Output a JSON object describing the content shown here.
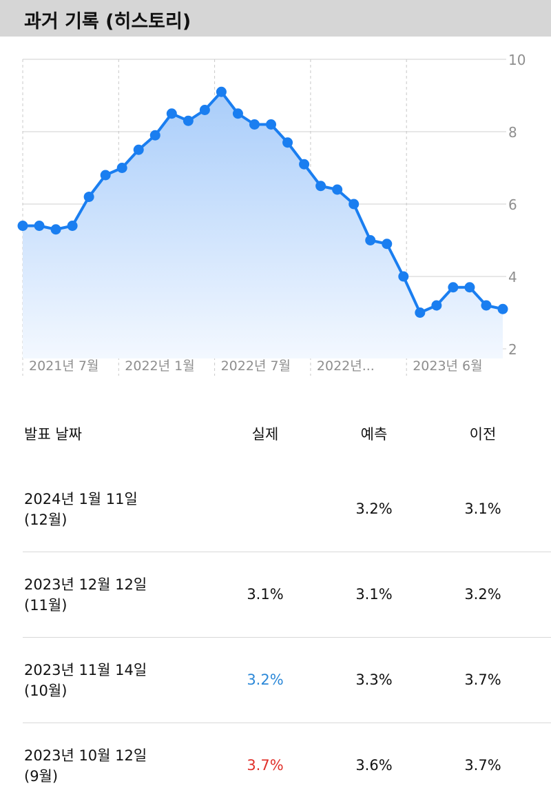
{
  "header": {
    "title": "과거 기록 (히스토리)"
  },
  "chart_data": {
    "type": "area",
    "x": [
      "2021-06",
      "2021-07",
      "2021-08",
      "2021-09",
      "2021-10",
      "2021-11",
      "2021-12",
      "2022-01",
      "2022-02",
      "2022-03",
      "2022-04",
      "2022-05",
      "2022-06",
      "2022-07",
      "2022-08",
      "2022-09",
      "2022-10",
      "2022-11",
      "2022-12",
      "2023-01",
      "2023-02",
      "2023-03",
      "2023-04",
      "2023-05",
      "2023-06",
      "2023-07",
      "2023-08",
      "2023-09",
      "2023-10",
      "2023-11"
    ],
    "values": [
      5.4,
      5.4,
      5.3,
      5.4,
      6.2,
      6.8,
      7.0,
      7.5,
      7.9,
      8.5,
      8.3,
      8.6,
      9.1,
      8.5,
      8.2,
      8.2,
      7.7,
      7.1,
      6.5,
      6.4,
      6.0,
      5.0,
      4.9,
      4.0,
      3.0,
      3.2,
      3.7,
      3.7,
      3.2,
      3.1
    ],
    "x_tick_labels": [
      "2021년 7월",
      "2022년 1월",
      "2022년 7월",
      "2022년...",
      "2023년 6월"
    ],
    "y_ticks": [
      "10",
      "8",
      "6",
      "4",
      "2"
    ],
    "ylim": [
      2,
      10
    ],
    "grid": true,
    "y_axis_side": "right",
    "line_color": "#1a7ef0",
    "fill_color": "#a9cdfa"
  },
  "table": {
    "headers": {
      "date": "발표 날짜",
      "actual": "실제",
      "forecast": "예측",
      "previous": "이전"
    },
    "rows": [
      {
        "date": "2024년 1월 11일",
        "period": "(12월)",
        "actual": "",
        "forecast": "3.2%",
        "previous": "3.1%",
        "actual_color": "#111111"
      },
      {
        "date": "2023년 12월 12일",
        "period": "(11월)",
        "actual": "3.1%",
        "forecast": "3.1%",
        "previous": "3.2%",
        "actual_color": "#111111"
      },
      {
        "date": "2023년 11월 14일",
        "period": "(10월)",
        "actual": "3.2%",
        "forecast": "3.3%",
        "previous": "3.7%",
        "actual_color": "#2b88d8"
      },
      {
        "date": "2023년 10월 12일",
        "period": "(9월)",
        "actual": "3.7%",
        "forecast": "3.6%",
        "previous": "3.7%",
        "actual_color": "#e0302a"
      }
    ]
  }
}
